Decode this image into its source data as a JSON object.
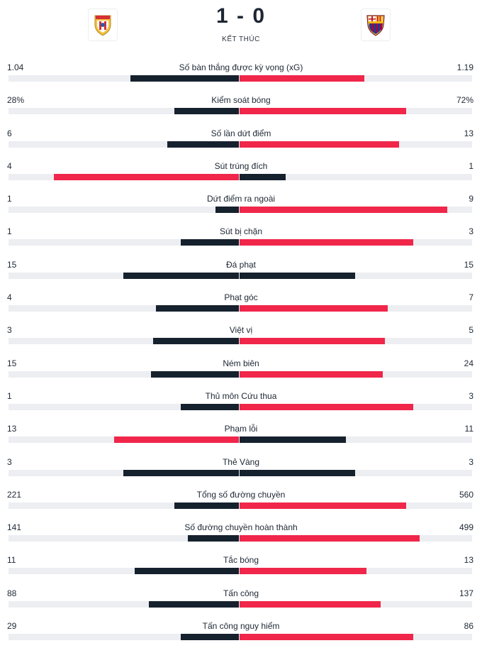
{
  "match": {
    "score": "1 - 0",
    "status": "KẾT THÚC",
    "home_crest_icon": "almeria-crest-icon",
    "away_crest_icon": "barcelona-crest-icon"
  },
  "colors": {
    "dark": "#16212e",
    "red": "#f0264a",
    "track": "#eceef2"
  },
  "stats": [
    {
      "label": "Số bàn thắng được kỳ vọng (xG)",
      "home": "1.04",
      "away": "1.19",
      "home_share": 0.47,
      "away_share": 0.54,
      "home_color": "dark",
      "away_color": "red"
    },
    {
      "label": "Kiểm soát bóng",
      "home": "28%",
      "away": "72%",
      "home_share": 0.28,
      "away_share": 0.72,
      "home_color": "dark",
      "away_color": "red"
    },
    {
      "label": "Số lần dứt điểm",
      "home": "6",
      "away": "13",
      "home_share": 0.31,
      "away_share": 0.69,
      "home_color": "dark",
      "away_color": "red"
    },
    {
      "label": "Sút trúng đích",
      "home": "4",
      "away": "1",
      "home_share": 0.8,
      "away_share": 0.2,
      "home_color": "red",
      "away_color": "dark"
    },
    {
      "label": "Dứt điểm ra ngoài",
      "home": "1",
      "away": "9",
      "home_share": 0.1,
      "away_share": 0.9,
      "home_color": "dark",
      "away_color": "red"
    },
    {
      "label": "Sút bị chặn",
      "home": "1",
      "away": "3",
      "home_share": 0.25,
      "away_share": 0.75,
      "home_color": "dark",
      "away_color": "red"
    },
    {
      "label": "Đá phạt",
      "home": "15",
      "away": "15",
      "home_share": 0.5,
      "away_share": 0.5,
      "home_color": "dark",
      "away_color": "dark"
    },
    {
      "label": "Phạt góc",
      "home": "4",
      "away": "7",
      "home_share": 0.36,
      "away_share": 0.64,
      "home_color": "dark",
      "away_color": "red"
    },
    {
      "label": "Việt vị",
      "home": "3",
      "away": "5",
      "home_share": 0.37,
      "away_share": 0.63,
      "home_color": "dark",
      "away_color": "red"
    },
    {
      "label": "Ném biên",
      "home": "15",
      "away": "24",
      "home_share": 0.38,
      "away_share": 0.62,
      "home_color": "dark",
      "away_color": "red"
    },
    {
      "label": "Thủ môn Cứu thua",
      "home": "1",
      "away": "3",
      "home_share": 0.25,
      "away_share": 0.75,
      "home_color": "dark",
      "away_color": "red"
    },
    {
      "label": "Phạm lỗi",
      "home": "13",
      "away": "11",
      "home_share": 0.54,
      "away_share": 0.46,
      "home_color": "red",
      "away_color": "dark"
    },
    {
      "label": "Thẻ Vàng",
      "home": "3",
      "away": "3",
      "home_share": 0.5,
      "away_share": 0.5,
      "home_color": "dark",
      "away_color": "dark"
    },
    {
      "label": "Tổng số đường chuyền",
      "home": "221",
      "away": "560",
      "home_share": 0.28,
      "away_share": 0.72,
      "home_color": "dark",
      "away_color": "red"
    },
    {
      "label": "Số đường chuyền hoàn thành",
      "home": "141",
      "away": "499",
      "home_share": 0.22,
      "away_share": 0.78,
      "home_color": "dark",
      "away_color": "red"
    },
    {
      "label": "Tắc bóng",
      "home": "11",
      "away": "13",
      "home_share": 0.45,
      "away_share": 0.55,
      "home_color": "dark",
      "away_color": "red"
    },
    {
      "label": "Tấn công",
      "home": "88",
      "away": "137",
      "home_share": 0.39,
      "away_share": 0.61,
      "home_color": "dark",
      "away_color": "red"
    },
    {
      "label": "Tấn công nguy hiểm",
      "home": "29",
      "away": "86",
      "home_share": 0.25,
      "away_share": 0.75,
      "home_color": "dark",
      "away_color": "red"
    }
  ]
}
